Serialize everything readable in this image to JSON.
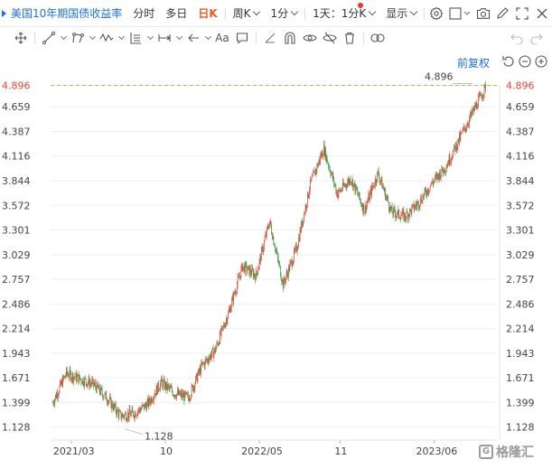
{
  "toolbar": {
    "symbol": "美国10年期国债收益率",
    "tabs": [
      "分时",
      "多日",
      "日K",
      "周K",
      "1分",
      "1天：1分K",
      "显示"
    ],
    "active_tab": "日K",
    "icons": [
      "settings-icon",
      "square-icon",
      "camera-icon",
      "edit-icon",
      "fullscreen-icon",
      "close-icon"
    ]
  },
  "drawing_tools": {
    "icons": [
      "crosshair-icon",
      "line-tool-icon",
      "polyline-tool-icon",
      "wave-tool-icon",
      "fib-tool-icon",
      "measure-tool-icon",
      "arrow-tool-icon",
      "text-tool-icon",
      "comment-icon",
      "ruler-icon",
      "magnet-icon",
      "eye-lock-icon",
      "eye-hide-icon",
      "trash-icon",
      "link-icon",
      "undo-icon",
      "redo-icon"
    ],
    "text_tool_label": "Aa"
  },
  "controls": {
    "adjust_label": "前复权",
    "icons": [
      "reset-icon",
      "zoom-out-icon",
      "zoom-in-icon"
    ]
  },
  "colors": {
    "up": "#e8443a",
    "down": "#2e9e3e",
    "accent": "#1e6fd9",
    "active": "#e85a2d",
    "ref_line": "#f5a05a",
    "last_price": "#e8443a"
  },
  "watermark": "格隆汇",
  "chart_data": {
    "type": "candlestick",
    "title": "美国10年期国债收益率",
    "y_ticks": [
      4.896,
      4.659,
      4.387,
      4.116,
      3.844,
      3.572,
      3.301,
      3.029,
      2.757,
      2.486,
      2.214,
      1.943,
      1.671,
      1.399,
      1.128
    ],
    "x_ticks": [
      "2021/03",
      "10",
      "2022/05",
      "11",
      "2023/06"
    ],
    "ylim": [
      0.985,
      5.04
    ],
    "last_value": 4.896,
    "high_label": 4.896,
    "low_label": 1.128,
    "series": [
      {
        "name": "",
        "x": [
          "2021-02",
          "2021-03",
          "2021-04",
          "2021-05",
          "2021-06",
          "2021-07",
          "2021-08",
          "2021-09",
          "2021-10",
          "2021-11",
          "2021-12",
          "2022-01",
          "2022-02",
          "2022-03",
          "2022-04",
          "2022-05",
          "2022-06",
          "2022-07",
          "2022-08",
          "2022-09",
          "2022-10",
          "2022-11",
          "2022-12",
          "2023-01",
          "2023-02",
          "2023-03",
          "2023-04",
          "2023-05",
          "2023-06",
          "2023-07",
          "2023-08",
          "2023-09",
          "2023-10"
        ],
        "close": [
          1.4,
          1.72,
          1.66,
          1.6,
          1.45,
          1.25,
          1.28,
          1.38,
          1.62,
          1.5,
          1.45,
          1.8,
          1.98,
          2.4,
          2.9,
          2.8,
          3.4,
          2.7,
          3.1,
          3.8,
          4.2,
          3.7,
          3.87,
          3.52,
          3.93,
          3.5,
          3.45,
          3.6,
          3.82,
          4.0,
          4.3,
          4.6,
          4.896
        ]
      }
    ]
  }
}
